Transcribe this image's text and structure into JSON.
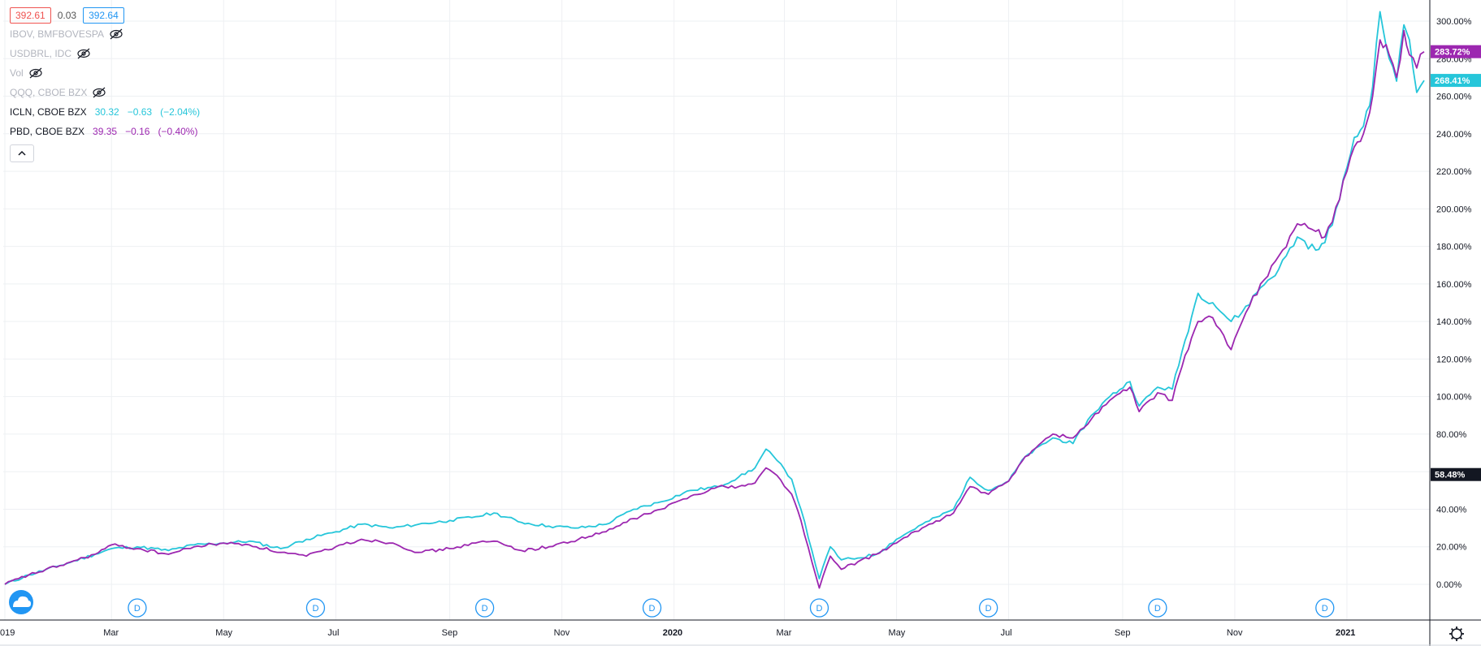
{
  "header": {
    "bid": "392.61",
    "spread": "0.03",
    "ask": "392.64"
  },
  "legend": [
    {
      "name": "IBOV, BMFBOVESPA",
      "hidden": true
    },
    {
      "name": "USDBRL, IDC",
      "hidden": true
    },
    {
      "name": "Vol",
      "hidden": true
    },
    {
      "name": "QQQ, CBOE BZX",
      "hidden": true
    },
    {
      "name": "ICLN, CBOE BZX",
      "hidden": false,
      "last": "30.32",
      "change": "−0.63",
      "change_pct": "(−2.04%)",
      "color": "#26c6da"
    },
    {
      "name": "PBD, CBOE BZX",
      "hidden": false,
      "last": "39.35",
      "change": "−0.16",
      "change_pct": "(−0.40%)",
      "color": "#9c27b0"
    }
  ],
  "colors": {
    "icln": "#26c6da",
    "pbd": "#9c27b0",
    "grid": "#eef0f3",
    "axis_line": "#131722",
    "crosshair_label_bg": "#131722"
  },
  "icons": {
    "legend_eye": "eye-off-icon",
    "collapse": "chevron-up-icon",
    "logo": "cloud-logo-icon",
    "settings": "gear-icon",
    "dividend_marker": "dividend-marker-icon"
  },
  "last_labels": {
    "pbd": "283.72%",
    "icln": "268.41%",
    "cursor": "58.48%"
  },
  "dividend_marker_label": "D",
  "chart_data": {
    "type": "line",
    "title": "",
    "xlabel": "",
    "ylabel": "",
    "y_unit": "%",
    "ylim": [
      -5,
      305
    ],
    "x_range": [
      "2019-01-02",
      "2021-02-12"
    ],
    "y_ticks": [
      "0.00%",
      "20.00%",
      "40.00%",
      "60.00%",
      "80.00%",
      "100.00%",
      "120.00%",
      "140.00%",
      "160.00%",
      "180.00%",
      "200.00%",
      "220.00%",
      "240.00%",
      "260.00%",
      "280.00%",
      "300.00%"
    ],
    "y_tick_values": [
      0,
      20,
      40,
      60,
      80,
      100,
      120,
      140,
      160,
      180,
      200,
      220,
      240,
      260,
      280,
      300
    ],
    "x_ticks": [
      {
        "label": "019",
        "date": "2019-01-01"
      },
      {
        "label": "Mar",
        "date": "2019-03-01"
      },
      {
        "label": "May",
        "date": "2019-05-01"
      },
      {
        "label": "Jul",
        "date": "2019-07-01"
      },
      {
        "label": "Sep",
        "date": "2019-09-01"
      },
      {
        "label": "Nov",
        "date": "2019-11-01"
      },
      {
        "label": "2020",
        "date": "2020-01-01"
      },
      {
        "label": "Mar",
        "date": "2020-03-01"
      },
      {
        "label": "May",
        "date": "2020-05-01"
      },
      {
        "label": "Jul",
        "date": "2020-07-01"
      },
      {
        "label": "Sep",
        "date": "2020-09-01"
      },
      {
        "label": "Nov",
        "date": "2020-11-01"
      },
      {
        "label": "2021",
        "date": "2021-01-01"
      }
    ],
    "dividend_dates": [
      "2019-03-15",
      "2019-06-20",
      "2019-09-20",
      "2019-12-20",
      "2020-03-20",
      "2020-06-20",
      "2020-09-20",
      "2020-12-20"
    ],
    "grid": true,
    "series": [
      {
        "name": "ICLN",
        "color": "#26c6da",
        "points": [
          [
            "2019-01-02",
            0
          ],
          [
            "2019-01-15",
            5
          ],
          [
            "2019-02-01",
            10
          ],
          [
            "2019-02-20",
            16
          ],
          [
            "2019-03-01",
            19
          ],
          [
            "2019-03-15",
            20
          ],
          [
            "2019-04-01",
            18
          ],
          [
            "2019-04-15",
            21
          ],
          [
            "2019-05-01",
            22
          ],
          [
            "2019-05-15",
            23
          ],
          [
            "2019-06-01",
            19
          ],
          [
            "2019-06-15",
            24
          ],
          [
            "2019-07-01",
            28
          ],
          [
            "2019-07-15",
            32
          ],
          [
            "2019-08-01",
            30
          ],
          [
            "2019-08-15",
            32
          ],
          [
            "2019-09-01",
            34
          ],
          [
            "2019-09-15",
            36
          ],
          [
            "2019-09-25",
            38
          ],
          [
            "2019-10-10",
            33
          ],
          [
            "2019-10-25",
            31
          ],
          [
            "2019-11-10",
            30
          ],
          [
            "2019-11-25",
            32
          ],
          [
            "2019-12-10",
            40
          ],
          [
            "2019-12-25",
            44
          ],
          [
            "2020-01-10",
            50
          ],
          [
            "2020-01-25",
            52
          ],
          [
            "2020-02-05",
            57
          ],
          [
            "2020-02-14",
            62
          ],
          [
            "2020-02-20",
            72
          ],
          [
            "2020-02-26",
            66
          ],
          [
            "2020-03-05",
            56
          ],
          [
            "2020-03-10",
            40
          ],
          [
            "2020-03-16",
            18
          ],
          [
            "2020-03-20",
            3
          ],
          [
            "2020-03-26",
            20
          ],
          [
            "2020-04-01",
            13
          ],
          [
            "2020-04-10",
            14
          ],
          [
            "2020-04-20",
            16
          ],
          [
            "2020-05-01",
            24
          ],
          [
            "2020-05-15",
            32
          ],
          [
            "2020-06-01",
            40
          ],
          [
            "2020-06-10",
            57
          ],
          [
            "2020-06-20",
            50
          ],
          [
            "2020-07-01",
            55
          ],
          [
            "2020-07-10",
            68
          ],
          [
            "2020-07-25",
            78
          ],
          [
            "2020-08-05",
            75
          ],
          [
            "2020-08-15",
            90
          ],
          [
            "2020-08-25",
            100
          ],
          [
            "2020-09-05",
            108
          ],
          [
            "2020-09-10",
            95
          ],
          [
            "2020-09-20",
            105
          ],
          [
            "2020-09-28",
            104
          ],
          [
            "2020-10-05",
            130
          ],
          [
            "2020-10-12",
            155
          ],
          [
            "2020-10-20",
            150
          ],
          [
            "2020-10-30",
            140
          ],
          [
            "2020-11-05",
            145
          ],
          [
            "2020-11-15",
            158
          ],
          [
            "2020-11-25",
            168
          ],
          [
            "2020-12-05",
            185
          ],
          [
            "2020-12-15",
            178
          ],
          [
            "2020-12-20",
            182
          ],
          [
            "2020-12-28",
            205
          ],
          [
            "2021-01-01",
            222
          ],
          [
            "2021-01-05",
            238
          ],
          [
            "2021-01-10",
            244
          ],
          [
            "2021-01-15",
            265
          ],
          [
            "2021-01-19",
            305
          ],
          [
            "2021-01-24",
            280
          ],
          [
            "2021-01-28",
            268
          ],
          [
            "2021-02-01",
            298
          ],
          [
            "2021-02-04",
            290
          ],
          [
            "2021-02-08",
            262
          ],
          [
            "2021-02-12",
            268.41
          ]
        ]
      },
      {
        "name": "PBD",
        "color": "#9c27b0",
        "points": [
          [
            "2019-01-02",
            0
          ],
          [
            "2019-01-15",
            5
          ],
          [
            "2019-02-01",
            10
          ],
          [
            "2019-02-20",
            16
          ],
          [
            "2019-03-01",
            21
          ],
          [
            "2019-03-15",
            19
          ],
          [
            "2019-04-01",
            16
          ],
          [
            "2019-04-15",
            20
          ],
          [
            "2019-05-01",
            22
          ],
          [
            "2019-05-15",
            21
          ],
          [
            "2019-06-01",
            17
          ],
          [
            "2019-06-15",
            15
          ],
          [
            "2019-07-01",
            20
          ],
          [
            "2019-07-15",
            24
          ],
          [
            "2019-08-01",
            22
          ],
          [
            "2019-08-15",
            17
          ],
          [
            "2019-09-01",
            19
          ],
          [
            "2019-09-15",
            22
          ],
          [
            "2019-09-25",
            23
          ],
          [
            "2019-10-10",
            18
          ],
          [
            "2019-10-25",
            20
          ],
          [
            "2019-11-10",
            24
          ],
          [
            "2019-11-25",
            28
          ],
          [
            "2019-12-10",
            35
          ],
          [
            "2019-12-25",
            40
          ],
          [
            "2020-01-10",
            47
          ],
          [
            "2020-01-25",
            52
          ],
          [
            "2020-02-05",
            52
          ],
          [
            "2020-02-14",
            54
          ],
          [
            "2020-02-20",
            62
          ],
          [
            "2020-02-26",
            58
          ],
          [
            "2020-03-05",
            48
          ],
          [
            "2020-03-10",
            34
          ],
          [
            "2020-03-16",
            12
          ],
          [
            "2020-03-20",
            -2
          ],
          [
            "2020-03-26",
            15
          ],
          [
            "2020-04-01",
            8
          ],
          [
            "2020-04-10",
            12
          ],
          [
            "2020-04-20",
            16
          ],
          [
            "2020-05-01",
            22
          ],
          [
            "2020-05-15",
            30
          ],
          [
            "2020-06-01",
            38
          ],
          [
            "2020-06-10",
            52
          ],
          [
            "2020-06-20",
            48
          ],
          [
            "2020-07-01",
            55
          ],
          [
            "2020-07-10",
            68
          ],
          [
            "2020-07-25",
            80
          ],
          [
            "2020-08-05",
            78
          ],
          [
            "2020-08-15",
            88
          ],
          [
            "2020-08-25",
            98
          ],
          [
            "2020-09-05",
            105
          ],
          [
            "2020-09-10",
            92
          ],
          [
            "2020-09-20",
            102
          ],
          [
            "2020-09-28",
            98
          ],
          [
            "2020-10-05",
            122
          ],
          [
            "2020-10-12",
            140
          ],
          [
            "2020-10-20",
            142
          ],
          [
            "2020-10-30",
            125
          ],
          [
            "2020-11-05",
            140
          ],
          [
            "2020-11-15",
            160
          ],
          [
            "2020-11-25",
            175
          ],
          [
            "2020-12-05",
            192
          ],
          [
            "2020-12-15",
            188
          ],
          [
            "2020-12-20",
            185
          ],
          [
            "2020-12-28",
            205
          ],
          [
            "2021-01-01",
            220
          ],
          [
            "2021-01-05",
            233
          ],
          [
            "2021-01-10",
            240
          ],
          [
            "2021-01-15",
            260
          ],
          [
            "2021-01-19",
            290
          ],
          [
            "2021-01-24",
            282
          ],
          [
            "2021-01-28",
            270
          ],
          [
            "2021-02-01",
            295
          ],
          [
            "2021-02-04",
            282
          ],
          [
            "2021-02-08",
            275
          ],
          [
            "2021-02-12",
            283.72
          ]
        ]
      }
    ]
  }
}
